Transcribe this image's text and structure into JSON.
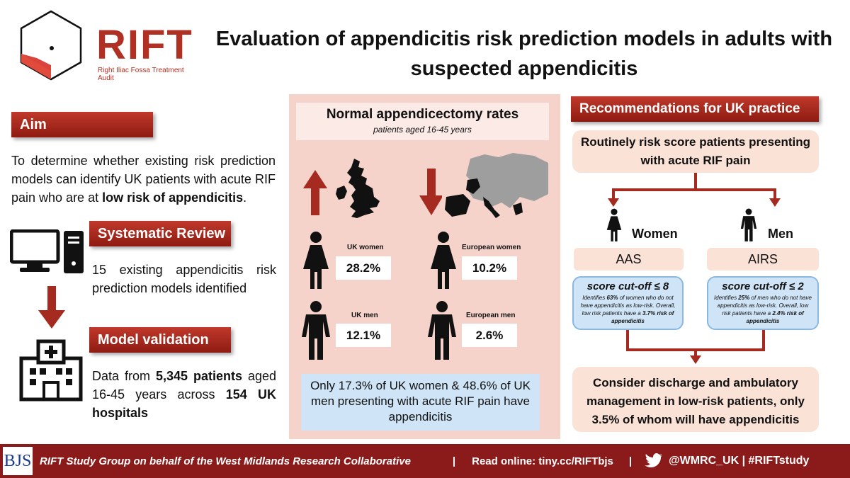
{
  "logo": {
    "name": "RIFT",
    "subtitle": "Right Iliac Fossa Treatment Audit"
  },
  "title": "Evaluation of appendicitis risk prediction models in adults with suspected appendicitis",
  "aim": {
    "heading": "Aim",
    "text_pre": "To determine whether existing risk prediction models can identify UK patients with acute RIF pain who are at ",
    "text_bold": "low risk of appendicitis",
    "text_post": "."
  },
  "systematic_review": {
    "heading": "Systematic Review",
    "text": "15 existing appendicitis risk prediction models identified"
  },
  "model_validation": {
    "heading": "Model validation",
    "t1": "Data from ",
    "b1": "5,345 patients",
    "t2": " aged 16-45 years across ",
    "b2": "154 UK hospitals"
  },
  "middle": {
    "heading": "Normal appendicectomy rates",
    "subheading": "patients aged 16-45 years",
    "uk_women": {
      "label": "UK women",
      "value": "28.2%"
    },
    "eu_women": {
      "label": "European women",
      "value": "10.2%"
    },
    "uk_men": {
      "label": "UK men",
      "value": "12.1%"
    },
    "eu_men": {
      "label": "European men",
      "value": "2.6%"
    },
    "summary": "Only 17.3% of UK women & 48.6% of UK men presenting with acute RIF pain have appendicitis"
  },
  "recommendations": {
    "heading": "Recommendations for UK practice",
    "top_box": "Routinely risk score patients presenting with acute RIF pain",
    "women_label": "Women",
    "men_label": "Men",
    "aas": {
      "name": "AAS",
      "score": "score cut-off ≤ 8",
      "d1": "Identifies ",
      "d1b": "63%",
      "d2": " of women who do not have appendicitis as low-risk. Overall, low risk patients have a ",
      "d2b": "3.7% risk of appendicitis"
    },
    "airs": {
      "name": "AIRS",
      "score": "score cut-off ≤ 2",
      "d1": "Identifies ",
      "d1b": "25%",
      "d2": " of men who do not have appendicitis as low-risk. Overall, low risk patients have a ",
      "d2b": "2.4% risk of appendicitis"
    },
    "bottom_box": "Consider discharge and ambulatory management in low-risk patients, only 3.5% of whom will have appendicitis"
  },
  "footer": {
    "journal": "BJS",
    "group": "RIFT Study Group on behalf of the West Midlands Research Collaborative",
    "sep1": "|",
    "read_online": "Read online: tiny.cc/RIFTbjs",
    "sep2": "|",
    "handle": "@WMRC_UK | #RIFTstudy"
  },
  "colors": {
    "accent_red": "#b03024",
    "panel_pink": "#f5d3cb",
    "blue_box": "#cfe5f7",
    "footer": "#8b1a1a"
  }
}
